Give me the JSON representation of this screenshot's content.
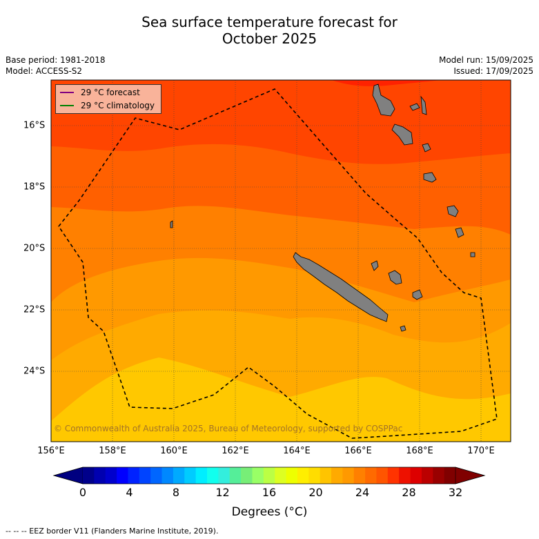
{
  "title": {
    "line1": "Sea surface temperature forecast for",
    "line2": "October 2025"
  },
  "meta": {
    "base_period": "Base period: 1981-2018",
    "model": "Model: ACCESS-S2",
    "model_run": "Model run: 15/09/2025",
    "issued": "Issued: 17/09/2025"
  },
  "map": {
    "lon_labels": [
      "156°E",
      "158°E",
      "160°E",
      "162°E",
      "164°E",
      "166°E",
      "168°E",
      "170°E"
    ],
    "lat_labels": [
      "16°S",
      "18°S",
      "20°S",
      "22°S",
      "24°S"
    ],
    "legend": {
      "forecast": "29 °C  forecast",
      "climatology": "29 °C  climatology",
      "forecast_color": "#800080",
      "climatology_color": "#008000"
    },
    "copyright": "© Commonwealth of Australia 2025, Bureau of Meteorology, supported by COSPPac",
    "land_color": "#808080"
  },
  "colorbar": {
    "tick_labels": [
      "0",
      "4",
      "8",
      "12",
      "16",
      "20",
      "24",
      "28",
      "32"
    ],
    "label": "Degrees (°C)",
    "colors": [
      "#00008b",
      "#0000b0",
      "#0000cd",
      "#0000ff",
      "#0022ff",
      "#0044ff",
      "#0066ff",
      "#0088ff",
      "#00aaff",
      "#00ccff",
      "#00eeff",
      "#11ffee",
      "#33eedd",
      "#55ee99",
      "#77ee77",
      "#99ff66",
      "#bbff44",
      "#ddff22",
      "#eeff00",
      "#ffee00",
      "#ffdd00",
      "#ffc400",
      "#ffaa00",
      "#ff9900",
      "#ff8000",
      "#ff6a00",
      "#ff5500",
      "#ff3300",
      "#ee1100",
      "#dd0000",
      "#bb0000",
      "#990000",
      "#800000"
    ],
    "under_color": "#000080",
    "over_color": "#800000"
  },
  "footnote": "--  --  -- EEZ border V11 (Flanders Marine Institute, 2019)."
}
